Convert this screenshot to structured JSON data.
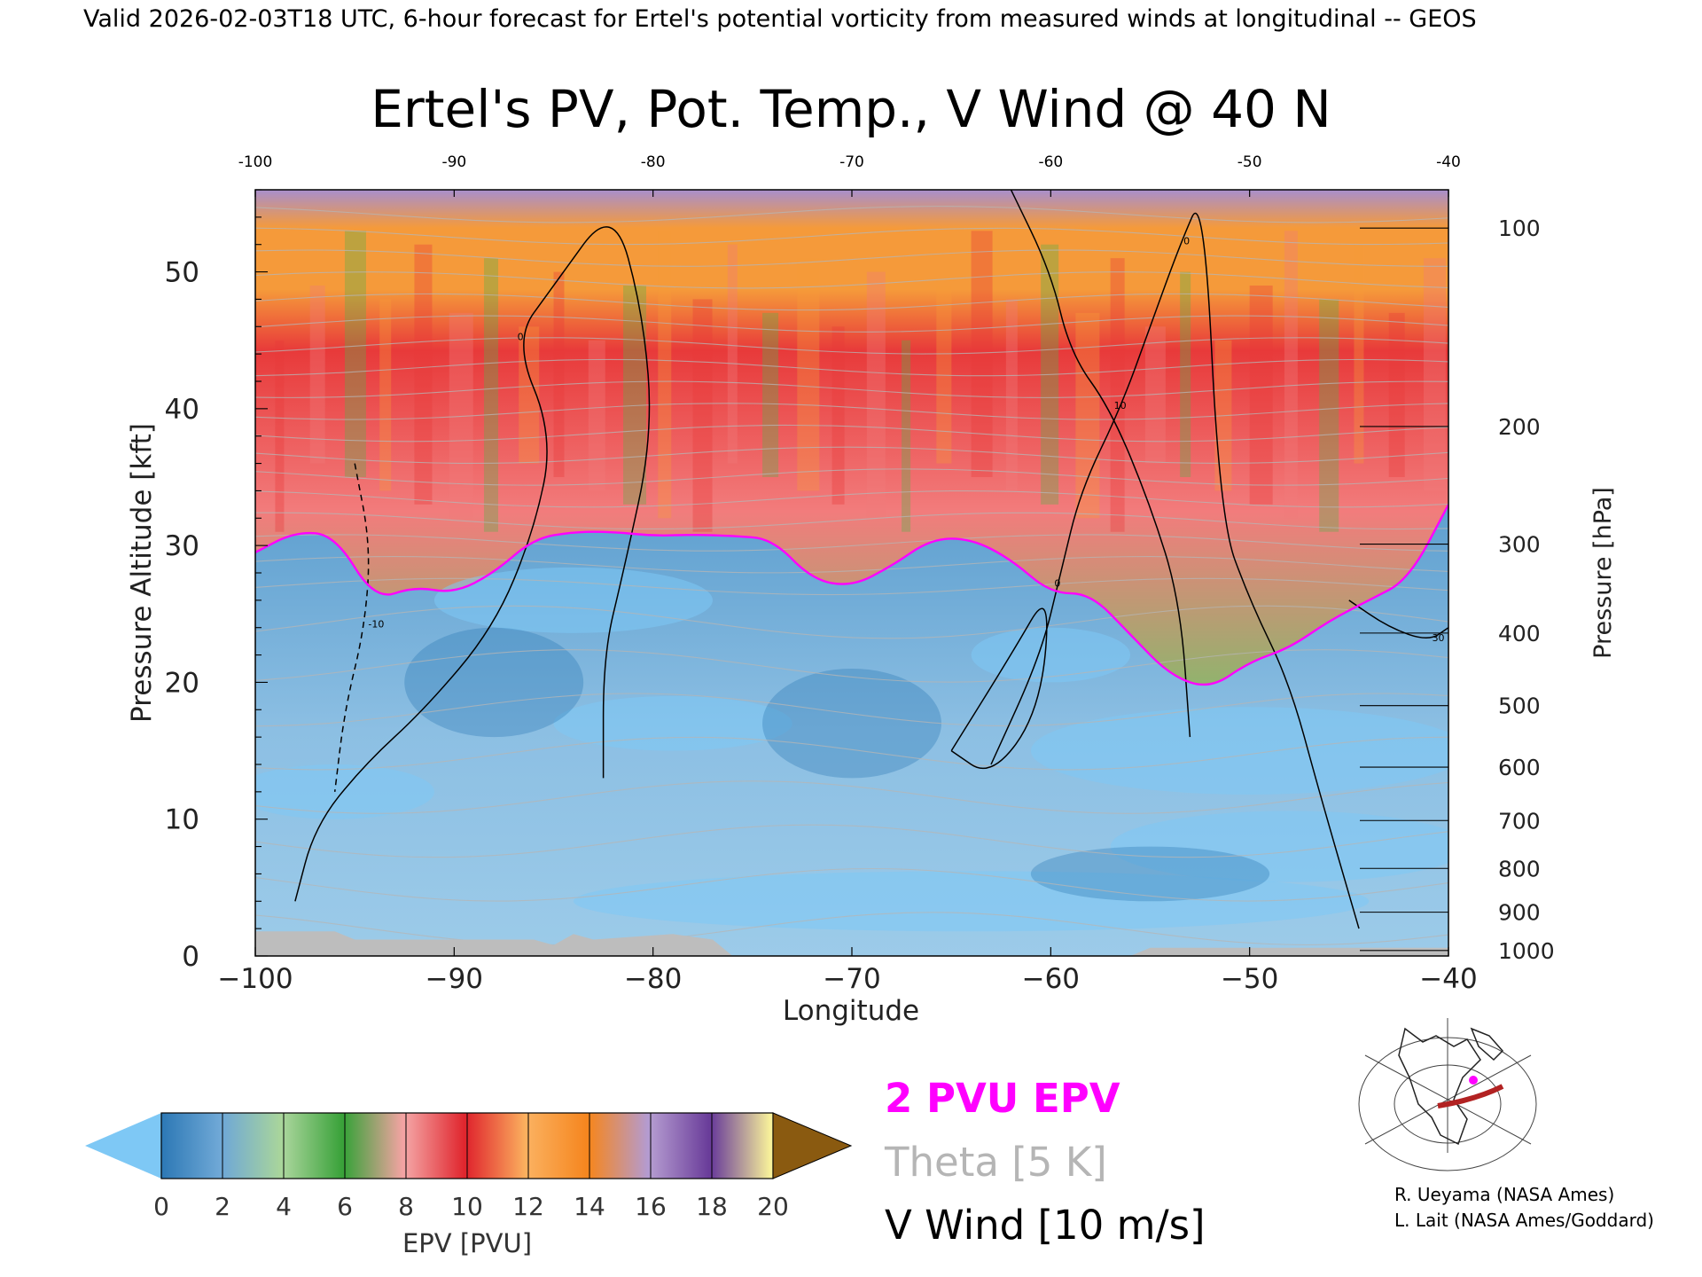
{
  "header": {
    "valid_line": "Valid 2026-02-03T18 UTC, 6-hour forecast for Ertel's potential vorticity from measured winds at longitudinal -- GEOS"
  },
  "chart_data": {
    "type": "heatmap",
    "title": "Ertel's PV, Pot. Temp., V Wind @ 40 N",
    "xlabel": "Longitude",
    "ylabel": "Pressure Altitude [kft]",
    "y2label": "Pressure [hPa]",
    "xlim": [
      -100,
      -40
    ],
    "ylim": [
      0,
      56
    ],
    "x_ticks": [
      "-100",
      "-90",
      "-80",
      "-70",
      "-60",
      "-50",
      "-40"
    ],
    "y_ticks": [
      "0",
      "10",
      "20",
      "30",
      "40",
      "50"
    ],
    "pressure_ticks": [
      {
        "label": "100",
        "kft": 53.2
      },
      {
        "label": "200",
        "kft": 38.7
      },
      {
        "label": "300",
        "kft": 30.1
      },
      {
        "label": "400",
        "kft": 23.6
      },
      {
        "label": "500",
        "kft": 18.3
      },
      {
        "label": "600",
        "kft": 13.8
      },
      {
        "label": "700",
        "kft": 9.9
      },
      {
        "label": "800",
        "kft": 6.4
      },
      {
        "label": "900",
        "kft": 3.2
      },
      {
        "label": "1000",
        "kft": 0.4
      }
    ],
    "epv_layers": [
      {
        "name": "stratosphere-top",
        "pvu": 15,
        "color": "#a88fcd"
      },
      {
        "name": "upper-orange",
        "pvu": 12,
        "color": "#f59a3a"
      },
      {
        "name": "red-band",
        "pvu": 9,
        "color": "#e83a3a"
      },
      {
        "name": "pink-band",
        "pvu": 7,
        "color": "#f27c7c"
      },
      {
        "name": "green-band",
        "pvu": 4.5,
        "color": "#55b24a"
      },
      {
        "name": "troposphere",
        "pvu": 1,
        "color": "#8fbddf"
      }
    ],
    "two_pvu_contour": {
      "lon": [
        -100,
        -98,
        -96,
        -94,
        -92,
        -90,
        -88,
        -86,
        -84,
        -82,
        -80,
        -78,
        -76,
        -74,
        -72,
        -70,
        -68,
        -66,
        -64,
        -62,
        -60,
        -58,
        -56,
        -54,
        -52,
        -50,
        -48,
        -46,
        -44,
        -42,
        -40
      ],
      "kft": [
        29.5,
        31,
        30.8,
        26,
        27,
        26.5,
        28,
        30.5,
        31,
        31,
        30.7,
        30.8,
        30.7,
        30.5,
        27.5,
        27,
        28.5,
        30.5,
        30.5,
        29,
        26.5,
        26.5,
        23.5,
        20.5,
        19.5,
        21.5,
        22.5,
        24.5,
        26,
        27.5,
        33
      ]
    },
    "v_wind_contours": [
      {
        "label": "0",
        "lon": [
          -98,
          -97,
          -94.5,
          -91.5,
          -88,
          -86,
          -85,
          -87,
          -85,
          -82,
          -80.5,
          -80,
          -81.5,
          -82.5,
          -82.5
        ],
        "kft": [
          4,
          9.5,
          14,
          18,
          24,
          31,
          38,
          45,
          49,
          55,
          47,
          38,
          28,
          22,
          13
        ]
      },
      {
        "label": "0",
        "lon": [
          -63,
          -60.5,
          -59.5,
          -58.5,
          -56.5,
          -55,
          -53.5,
          -52.3,
          -51.5,
          -50,
          -48,
          -46.5,
          -44.5
        ],
        "kft": [
          14,
          22,
          28,
          34,
          40,
          46,
          52,
          56,
          32,
          26,
          20,
          12,
          2
        ]
      },
      {
        "label": "0",
        "lon": [
          -65,
          -63,
          -60.5,
          -60,
          -62,
          -65
        ],
        "kft": [
          15,
          13,
          18,
          27,
          22,
          15
        ]
      },
      {
        "label": "10",
        "lon": [
          -62,
          -60,
          -59,
          -57,
          -55,
          -53.5,
          -53
        ],
        "kft": [
          56,
          50,
          44,
          40,
          33,
          26,
          16
        ]
      },
      {
        "label": "-10",
        "lon": [
          -95,
          -94.2,
          -94.5,
          -95.5,
          -96
        ],
        "kft": [
          36,
          30,
          24,
          18,
          12
        ]
      },
      {
        "label": "30",
        "lon": [
          -45,
          -43,
          -41,
          -40
        ],
        "kft": [
          26,
          24,
          23,
          24
        ]
      }
    ],
    "colorbar": {
      "label": "EPV [PVU]",
      "ticks": [
        "0",
        "2",
        "4",
        "6",
        "8",
        "10",
        "12",
        "14",
        "16",
        "18",
        "20"
      ],
      "colors": [
        "#2c78b5",
        "#6fa8d6",
        "#a9d59b",
        "#3aa23a",
        "#f4a3a3",
        "#e0262e",
        "#fbb05e",
        "#f5861f",
        "#b49bd0",
        "#6a3d9a",
        "#f7f09a"
      ],
      "under_color": "#7ec8f5",
      "over_color": "#8a5a10"
    }
  },
  "legend": {
    "pvu_line": "2 PVU EPV",
    "theta_line": "Theta [5 K]",
    "wind_line": "V Wind [10 m/s]",
    "pvu_color": "#ff00ff",
    "theta_color": "#b5b5b5",
    "wind_color": "#000000"
  },
  "credits": {
    "line1": "R. Ueyama (NASA Ames)",
    "line2": "L. Lait (NASA Ames/Goddard)"
  },
  "inset_map": {
    "marker_color": "#ff00ff",
    "track_color": "#b22222"
  }
}
